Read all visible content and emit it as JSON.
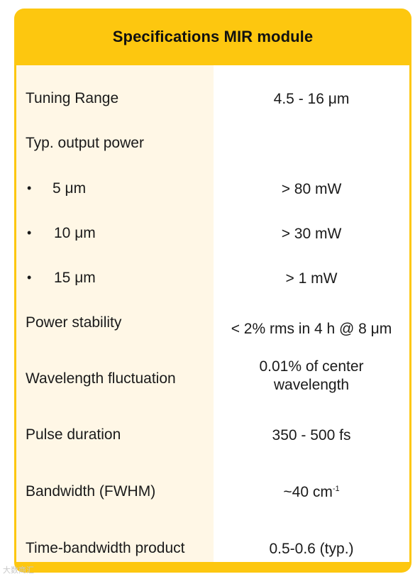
{
  "title": "Specifications MIR module",
  "rows": [
    {
      "label": "Tuning Range",
      "value": "4.5 - 16 μm"
    },
    {
      "label": "Typ. output power",
      "value": ""
    },
    {
      "bullet": "•",
      "label": "5 μm",
      "value": "> 80 mW"
    },
    {
      "bullet": "•",
      "label": "10 μm",
      "value": "> 30 mW"
    },
    {
      "bullet": "•",
      "label": "15 μm",
      "value": "> 1 mW"
    },
    {
      "label": "Power stability",
      "value": "< 2% rms in 4 h @ 8 μm"
    },
    {
      "label": "Wavelength fluctuation",
      "value_line1": "0.01% of center",
      "value_line2": "wavelength"
    },
    {
      "label": "Pulse duration",
      "value": "350 - 500 fs"
    },
    {
      "label": "Bandwidth (FWHM)",
      "value": "~40 cm",
      "value_sup": "-1"
    },
    {
      "label": "Time-bandwidth product",
      "value": "0.5-0.6 (typ.)"
    }
  ],
  "watermark": "大数商汇",
  "colors": {
    "header": "#fdc70f",
    "label_column": "#fff7e6",
    "value_column": "#ffffff",
    "text": "#1a1a1a"
  }
}
